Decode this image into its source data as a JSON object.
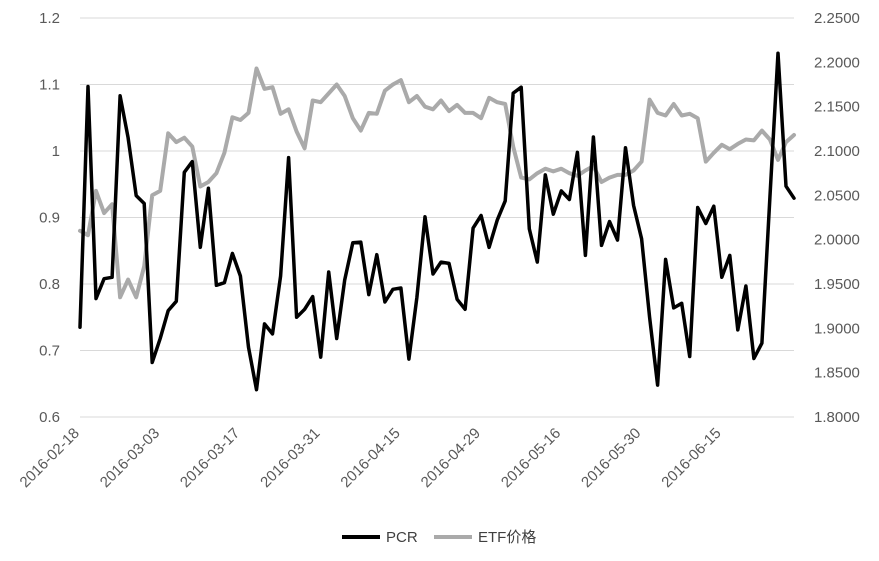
{
  "chart_data": {
    "type": "line",
    "title": "",
    "xlabel": "",
    "ylabel": "",
    "ylim": [
      0.6,
      1.2
    ],
    "y2lim": [
      1.8,
      2.25
    ],
    "y_ticks": [
      "0.6",
      "0.7",
      "0.8",
      "0.9",
      "1",
      "1.1",
      "1.2"
    ],
    "y2_ticks": [
      "1.8000",
      "1.8500",
      "1.9000",
      "1.9500",
      "2.0000",
      "2.0500",
      "2.1000",
      "2.1500",
      "2.2000",
      "2.2500"
    ],
    "x_tick_labels": [
      "2016-02-18",
      "2016-03-03",
      "2016-03-17",
      "2016-03-31",
      "2016-04-15",
      "2016-04-29",
      "2016-05-16",
      "2016-05-30",
      "2016-06-15"
    ],
    "x_tick_index_step": 10,
    "grid": true,
    "legend_position": "bottom",
    "series": [
      {
        "name": "PCR",
        "axis": "left",
        "color": "#000000",
        "values": [
          0.735,
          1.097,
          0.778,
          0.808,
          0.81,
          1.083,
          1.02,
          0.933,
          0.921,
          0.682,
          0.718,
          0.76,
          0.774,
          0.968,
          0.984,
          0.855,
          0.944,
          0.798,
          0.802,
          0.846,
          0.812,
          0.705,
          0.641,
          0.74,
          0.725,
          0.812,
          0.99,
          0.75,
          0.762,
          0.781,
          0.69,
          0.818,
          0.718,
          0.806,
          0.862,
          0.863,
          0.784,
          0.844,
          0.773,
          0.792,
          0.794,
          0.687,
          0.78,
          0.901,
          0.815,
          0.833,
          0.831,
          0.777,
          0.762,
          0.884,
          0.903,
          0.855,
          0.896,
          0.925,
          1.087,
          1.096,
          0.883,
          0.833,
          0.964,
          0.905,
          0.94,
          0.927,
          0.998,
          0.843,
          1.021,
          0.858,
          0.894,
          0.866,
          1.005,
          0.918,
          0.868,
          0.75,
          0.648,
          0.837,
          0.764,
          0.771,
          0.691,
          0.915,
          0.891,
          0.917,
          0.81,
          0.843,
          0.731,
          0.797,
          0.688,
          0.711,
          0.93,
          1.147,
          0.947,
          0.929
        ]
      },
      {
        "name": "ETF价格",
        "axis": "right",
        "color": "#aaaaaa",
        "values": [
          2.01,
          2.005,
          2.055,
          2.03,
          2.04,
          1.935,
          1.955,
          1.935,
          1.97,
          2.05,
          2.055,
          2.12,
          2.11,
          2.115,
          2.105,
          2.06,
          2.065,
          2.075,
          2.098,
          2.138,
          2.135,
          2.143,
          2.193,
          2.17,
          2.172,
          2.142,
          2.147,
          2.122,
          2.103,
          2.157,
          2.155,
          2.165,
          2.175,
          2.162,
          2.137,
          2.123,
          2.143,
          2.142,
          2.168,
          2.175,
          2.18,
          2.155,
          2.162,
          2.15,
          2.147,
          2.157,
          2.145,
          2.152,
          2.143,
          2.143,
          2.137,
          2.16,
          2.155,
          2.153,
          2.105,
          2.07,
          2.068,
          2.075,
          2.08,
          2.077,
          2.08,
          2.075,
          2.072,
          2.078,
          2.083,
          2.065,
          2.07,
          2.073,
          2.073,
          2.078,
          2.088,
          2.158,
          2.143,
          2.14,
          2.153,
          2.14,
          2.142,
          2.137,
          2.088,
          2.098,
          2.107,
          2.102,
          2.108,
          2.113,
          2.112,
          2.123,
          2.113,
          2.09,
          2.11,
          2.118
        ]
      }
    ]
  }
}
